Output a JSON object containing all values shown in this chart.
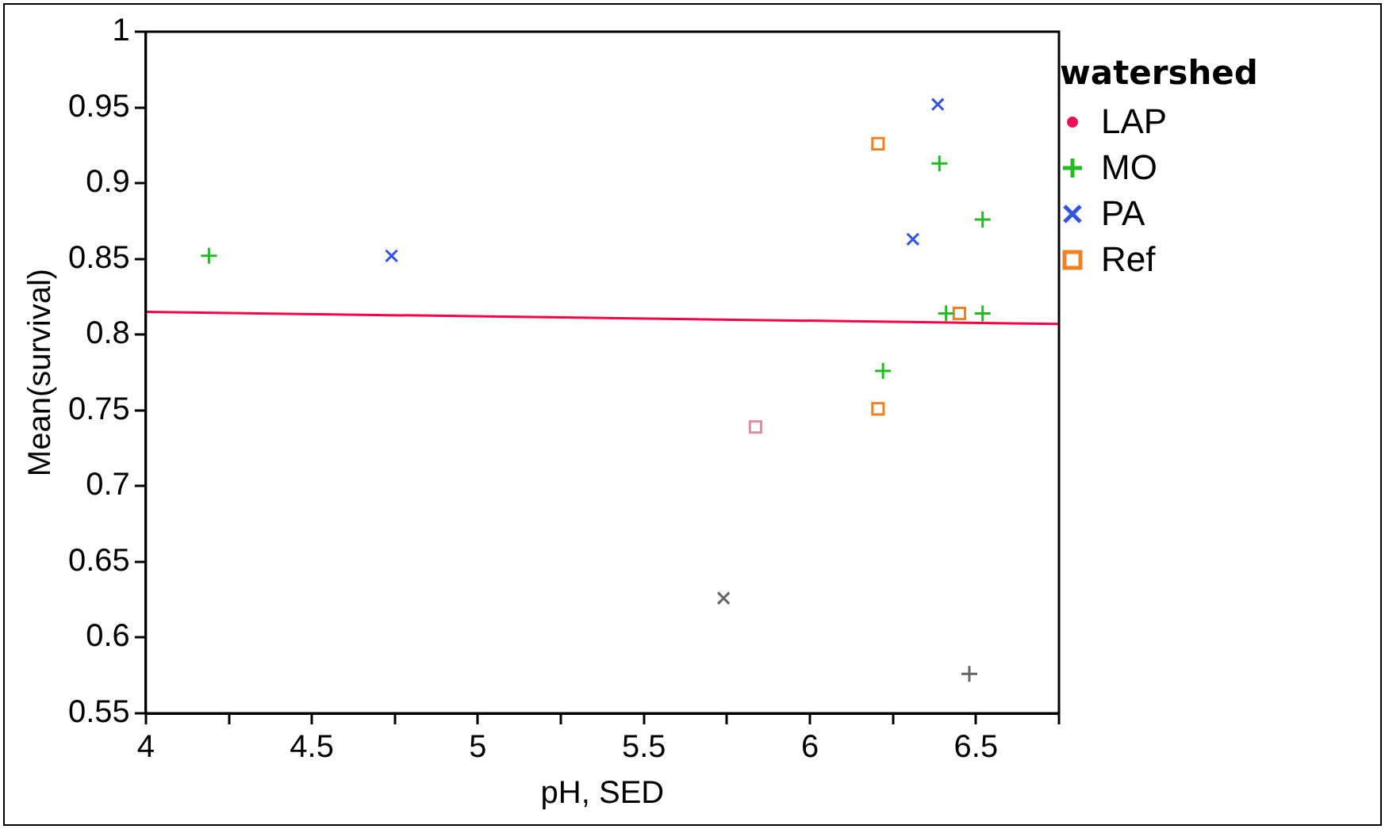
{
  "chart_data": {
    "type": "scatter",
    "xlabel": "pH, SED",
    "ylabel": "Mean(survival)",
    "legend_title": "watershed",
    "legend": "right",
    "grid": false,
    "xlim": [
      4,
      6.75
    ],
    "xticks": [
      4,
      {
        "value": 4.25,
        "label": null
      },
      4.5,
      {
        "value": 4.75,
        "label": null
      },
      5,
      {
        "value": 5.25,
        "label": null
      },
      5.5,
      {
        "value": 5.75,
        "label": null
      },
      6,
      {
        "value": 6.25,
        "label": null
      },
      6.5,
      {
        "value": 6.75,
        "label": null
      }
    ],
    "ylim": [
      0.55,
      1
    ],
    "yticks": [
      0.55,
      0.6,
      0.65,
      0.7,
      0.75,
      0.8,
      0.85,
      0.9,
      0.95,
      1
    ],
    "series": [
      {
        "name": "LAP",
        "color": "#ee1155",
        "marker": "circle"
      },
      {
        "name": "MO",
        "color": "#22bb22",
        "marker": "cross",
        "x": [
          4.19,
          6.39,
          6.52,
          6.41,
          6.52,
          6.22
        ],
        "values": [
          0.852,
          0.913,
          0.876,
          0.814,
          0.814,
          0.776
        ]
      },
      {
        "name": "PA",
        "color": "#3355dd",
        "marker": "x",
        "x": [
          4.74,
          6.385,
          6.31
        ],
        "values": [
          0.852,
          0.952,
          0.863
        ]
      },
      {
        "name": "Ref",
        "color": "#f08020",
        "marker": "square",
        "x": [
          6.205,
          6.45,
          6.205
        ],
        "values": [
          0.926,
          0.814,
          0.751
        ]
      },
      {
        "color": "#d890a8",
        "marker": "square",
        "x": [
          5.836
        ],
        "values": [
          0.739
        ]
      },
      {
        "color": "#666666",
        "marker": "x",
        "x": [
          5.74
        ],
        "values": [
          0.626
        ]
      },
      {
        "color": "#666666",
        "marker": "cross",
        "x": [
          6.48
        ],
        "values": [
          0.576
        ]
      },
      {
        "type": "line",
        "color": "#ff0044",
        "marker": "none",
        "x": [
          4,
          6.75
        ],
        "values": [
          0.815,
          0.807
        ]
      }
    ]
  }
}
